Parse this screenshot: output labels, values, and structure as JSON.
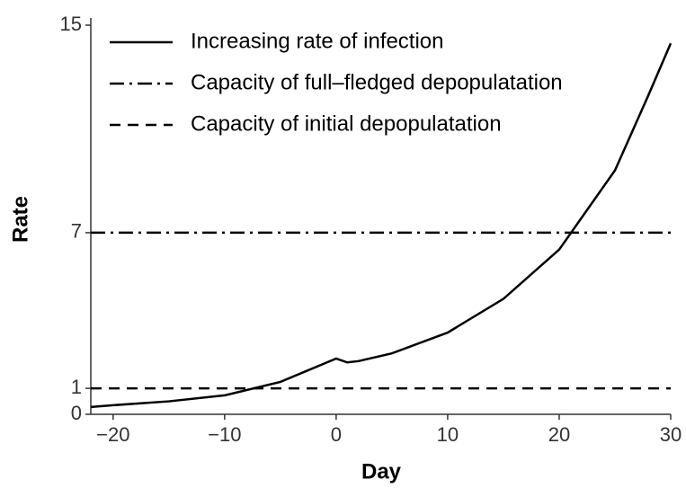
{
  "chart_data": {
    "type": "line",
    "x_label": "Day",
    "y_label": "Rate",
    "xlim": [
      -22,
      30
    ],
    "ylim": [
      0,
      15
    ],
    "xticks": [
      {
        "value": -20,
        "label": "−20"
      },
      {
        "value": -10,
        "label": "−10"
      },
      0,
      10,
      20,
      30
    ],
    "yticks": [
      0,
      1,
      7,
      15
    ],
    "series": [
      {
        "name": "Increasing rate of infection",
        "color": "#000000",
        "dash": "solid",
        "x": [
          -22,
          -20,
          -15,
          -10,
          -5,
          0,
          1,
          2,
          5,
          10,
          15,
          20,
          25,
          28,
          30
        ],
        "values": [
          0.28,
          0.35,
          0.5,
          0.73,
          1.25,
          2.15,
          2.0,
          2.05,
          2.35,
          3.15,
          4.45,
          6.35,
          9.4,
          12.3,
          14.3
        ]
      }
    ],
    "hlines": [
      {
        "name": "Capacity of full–fledged depopulatation",
        "value": 7,
        "color": "#000000",
        "dash": "dashdot"
      },
      {
        "name": "Capacity of initial depopulatation",
        "value": 1,
        "color": "#000000",
        "dash": "dashed"
      }
    ],
    "legend": "upper left"
  }
}
